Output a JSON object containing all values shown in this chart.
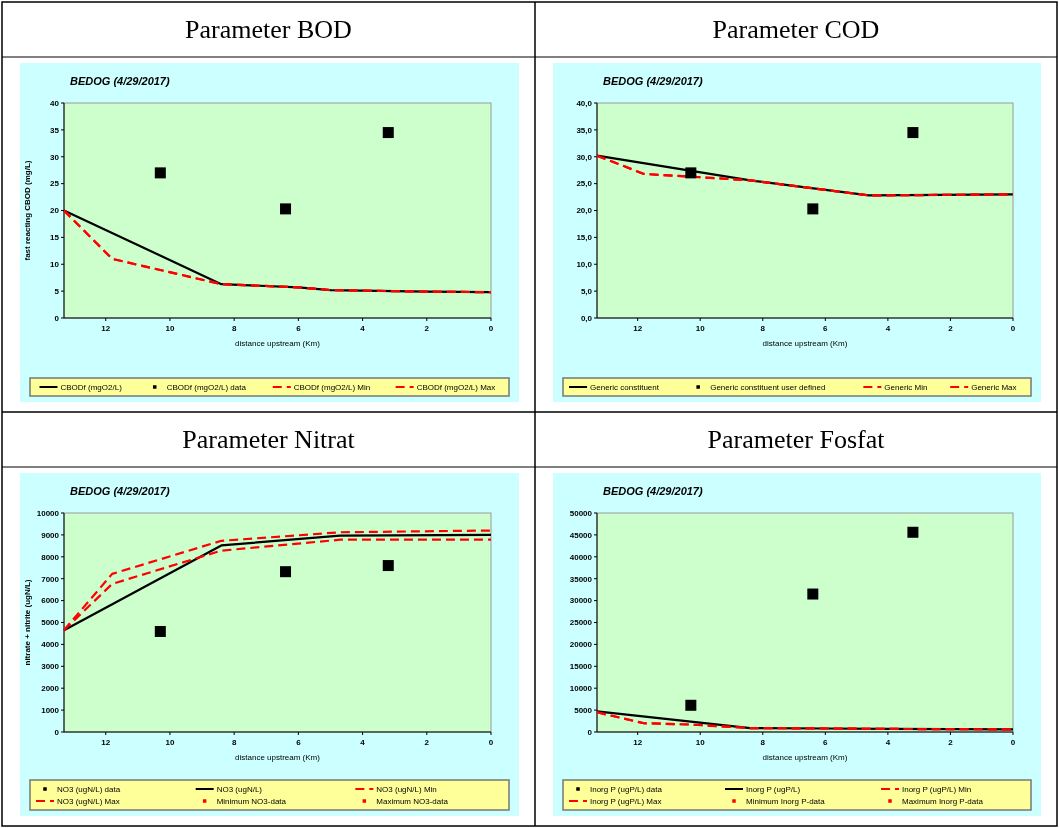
{
  "chart_data": [
    {
      "type": "line",
      "title": "Parameter BOD",
      "subtitle": "BEDOG (4/29/2017)",
      "xlabel": "distance upstream (Km)",
      "ylabel": "fast reacting CBOD (mg/L)",
      "xlim": [
        13.3,
        0
      ],
      "xticks": [
        12,
        10,
        8,
        6,
        4,
        2,
        0
      ],
      "ylim": [
        0,
        40
      ],
      "yticks": [
        0,
        5,
        10,
        15,
        20,
        25,
        30,
        35,
        40
      ],
      "grid": false,
      "legend": "bottom",
      "series": [
        {
          "name": "CBODf (mgO2/L)",
          "color": "#000000",
          "line_style": "solid",
          "x": [
            13.3,
            8.4,
            6,
            5,
            2,
            0
          ],
          "values": [
            20,
            6.3,
            5.7,
            5.2,
            4.9,
            4.8
          ]
        },
        {
          "name": "CBODf (mgO2/L) data",
          "type": "scatter",
          "marker": "square",
          "color": "#000000",
          "x": [
            10.3,
            6.4,
            3.2
          ],
          "values": [
            27,
            20.3,
            34.5
          ]
        },
        {
          "name": "CBODf (mgO2/L) Min",
          "color": "#ff0000",
          "line_style": "dashed",
          "x": [
            13.3,
            11.8,
            8.4,
            6,
            5,
            2,
            0
          ],
          "values": [
            20,
            11,
            6.3,
            5.7,
            5.2,
            4.9,
            4.8
          ]
        },
        {
          "name": "CBODf (mgO2/L) Max",
          "color": "#ff0000",
          "line_style": "dashed",
          "x": [
            13.3,
            11.8,
            8.4,
            6,
            5,
            2,
            0
          ],
          "values": [
            20,
            11,
            6.3,
            5.7,
            5.2,
            4.9,
            4.8
          ]
        }
      ]
    },
    {
      "type": "line",
      "title": "Parameter COD",
      "subtitle": "BEDOG (4/29/2017)",
      "xlabel": "distance upstream (Km)",
      "xlim": [
        13.3,
        0
      ],
      "xticks": [
        12,
        10,
        8,
        6,
        4,
        2,
        0
      ],
      "ylim": [
        0,
        40
      ],
      "yticks": [
        {
          "value": 0,
          "label": "0,0"
        },
        {
          "value": 5,
          "label": "5,0"
        },
        {
          "value": 10,
          "label": "10,0"
        },
        {
          "value": 15,
          "label": "15,0"
        },
        {
          "value": 20,
          "label": "20,0"
        },
        {
          "value": 25,
          "label": "25,0"
        },
        {
          "value": 30,
          "label": "30,0"
        },
        {
          "value": 35,
          "label": "35,0"
        },
        {
          "value": 40,
          "label": "40,0"
        }
      ],
      "grid": false,
      "legend": "bottom",
      "series": [
        {
          "name": "Generic constituent",
          "color": "#000000",
          "line_style": "solid",
          "x": [
            13.3,
            8.4,
            4.6,
            0
          ],
          "values": [
            30.2,
            25.6,
            22.8,
            23
          ]
        },
        {
          "name": "Generic constituent user defined",
          "type": "scatter",
          "marker": "square",
          "color": "#000000",
          "x": [
            10.3,
            6.4,
            3.2
          ],
          "values": [
            27,
            20.3,
            34.5
          ]
        },
        {
          "name": "Generic Min",
          "color": "#ff0000",
          "line_style": "dashed",
          "x": [
            13.3,
            11.8,
            10.3,
            8.4,
            4.6,
            0
          ],
          "values": [
            30.2,
            26.8,
            26.3,
            25.6,
            22.8,
            23
          ]
        },
        {
          "name": "Generic Max",
          "color": "#ff0000",
          "line_style": "dashed",
          "x": [
            13.3,
            11.8,
            10.3,
            8.4,
            4.6,
            0
          ],
          "values": [
            30.2,
            26.8,
            26.3,
            25.6,
            22.8,
            23
          ]
        }
      ]
    },
    {
      "type": "line",
      "title": "Parameter Nitrat",
      "subtitle": "BEDOG (4/29/2017)",
      "xlabel": "distance upstream (Km)",
      "ylabel": "nitrate + nitrite (ugN/L)",
      "xlim": [
        13.3,
        0
      ],
      "xticks": [
        12,
        10,
        8,
        6,
        4,
        2,
        0
      ],
      "ylim": [
        0,
        10000
      ],
      "yticks": [
        0,
        1000,
        2000,
        3000,
        4000,
        5000,
        6000,
        7000,
        8000,
        9000,
        10000
      ],
      "grid": false,
      "legend": "bottom",
      "series": [
        {
          "name": "NO3 (ugN/L) data",
          "type": "scatter",
          "marker": "square",
          "color": "#000000",
          "x": [
            10.3,
            6.4,
            3.2
          ],
          "values": [
            4590,
            7320,
            7600
          ]
        },
        {
          "name": "NO3 (ugN/L)",
          "color": "#000000",
          "line_style": "solid",
          "x": [
            13.3,
            8.4,
            4.7,
            0
          ],
          "values": [
            4650,
            8520,
            8970,
            9000
          ]
        },
        {
          "name": "NO3 (ugN/L) Min",
          "color": "#ff0000",
          "line_style": "dashed",
          "x": [
            13.3,
            11.8,
            8.4,
            4.7,
            0
          ],
          "values": [
            4650,
            6760,
            8280,
            8780,
            8780
          ]
        },
        {
          "name": "NO3 (ugN/L) Max",
          "color": "#ff0000",
          "line_style": "dashed",
          "x": [
            13.3,
            11.8,
            8.4,
            4.7,
            0
          ],
          "values": [
            4650,
            7220,
            8730,
            9120,
            9200
          ]
        },
        {
          "name": "Minimum NO3-data",
          "type": "scatter",
          "marker": "square",
          "color": "#ff0000"
        },
        {
          "name": "Maximum NO3-data",
          "type": "scatter",
          "marker": "square",
          "color": "#ff0000"
        }
      ]
    },
    {
      "type": "line",
      "title": "Parameter Fosfat",
      "subtitle": "BEDOG (4/29/2017)",
      "xlabel": "distance upstream (Km)",
      "xlim": [
        13.3,
        0
      ],
      "xticks": [
        12,
        10,
        8,
        6,
        4,
        2,
        0
      ],
      "ylim": [
        0,
        50000
      ],
      "yticks": [
        0,
        5000,
        10000,
        15000,
        20000,
        25000,
        30000,
        35000,
        40000,
        45000,
        50000
      ],
      "grid": false,
      "legend": "bottom",
      "series": [
        {
          "name": "Inorg P (ugP/L) data",
          "type": "scatter",
          "marker": "square",
          "color": "#000000",
          "x": [
            10.3,
            6.4,
            3.2
          ],
          "values": [
            6100,
            31500,
            45600
          ]
        },
        {
          "name": "Inorg P (ugP/L)",
          "color": "#000000",
          "line_style": "solid",
          "x": [
            13.3,
            8.4,
            6,
            4,
            0
          ],
          "values": [
            4700,
            900,
            800,
            700,
            600
          ]
        },
        {
          "name": "Inorg P (ugP/L) Min",
          "color": "#ff0000",
          "line_style": "dashed",
          "x": [
            13.3,
            11.8,
            10.3,
            8.4,
            6,
            4,
            0
          ],
          "values": [
            4500,
            2000,
            1700,
            900,
            800,
            700,
            600
          ]
        },
        {
          "name": "Inorg P (ugP/L) Max",
          "color": "#ff0000",
          "line_style": "dashed",
          "x": [
            13.3,
            11.8,
            10.3,
            8.4,
            6,
            4,
            0
          ],
          "values": [
            4500,
            2000,
            1700,
            900,
            800,
            700,
            600
          ]
        },
        {
          "name": "Minimum Inorg P-data",
          "type": "scatter",
          "marker": "square",
          "color": "#ff0000"
        },
        {
          "name": "Maximum Inorg P-data",
          "type": "scatter",
          "marker": "square",
          "color": "#ff0000"
        }
      ]
    }
  ]
}
